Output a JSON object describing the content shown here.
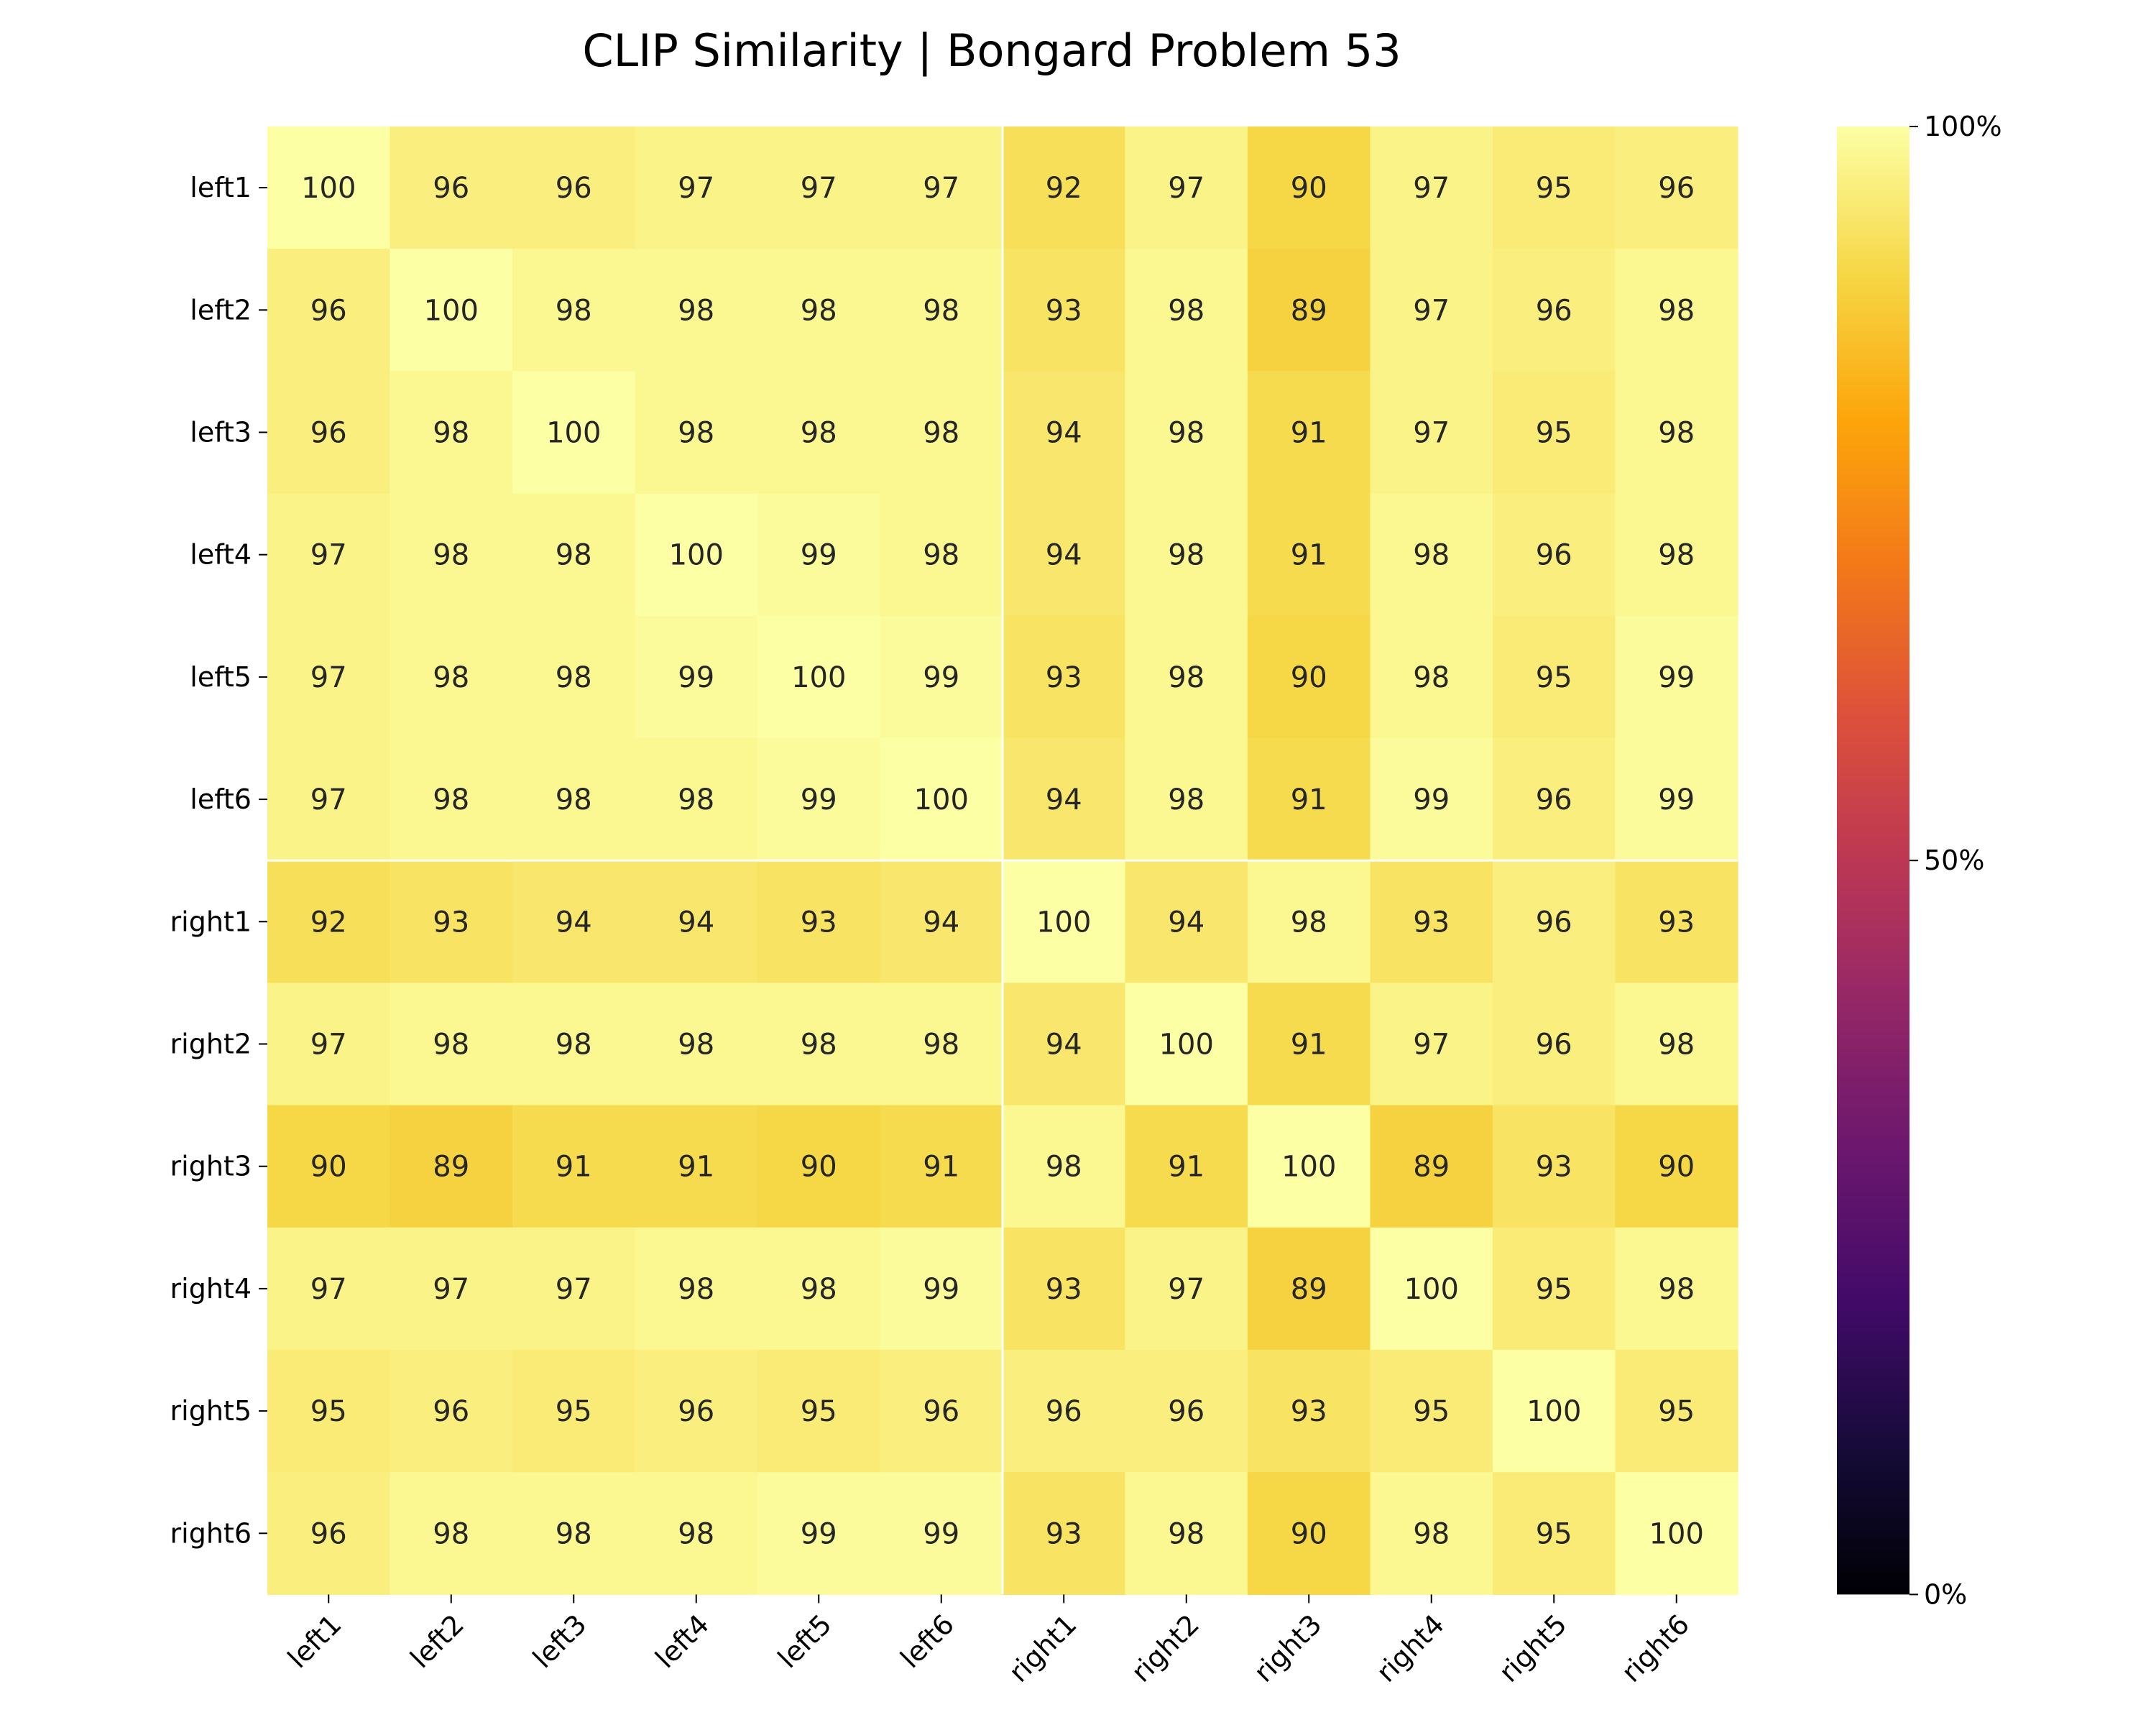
{
  "chart_data": {
    "type": "heatmap",
    "title": "CLIP Similarity | Bongard Problem 53",
    "xlabel": "",
    "ylabel": "",
    "x_categories": [
      "left1",
      "left2",
      "left3",
      "left4",
      "left5",
      "left6",
      "right1",
      "right2",
      "right3",
      "right4",
      "right5",
      "right6"
    ],
    "y_categories": [
      "left1",
      "left2",
      "left3",
      "left4",
      "left5",
      "left6",
      "right1",
      "right2",
      "right3",
      "right4",
      "right5",
      "right6"
    ],
    "values": [
      [
        100,
        96,
        96,
        97,
        97,
        97,
        92,
        97,
        90,
        97,
        95,
        96
      ],
      [
        96,
        100,
        98,
        98,
        98,
        98,
        93,
        98,
        89,
        97,
        96,
        98
      ],
      [
        96,
        98,
        100,
        98,
        98,
        98,
        94,
        98,
        91,
        97,
        95,
        98
      ],
      [
        97,
        98,
        98,
        100,
        99,
        98,
        94,
        98,
        91,
        98,
        96,
        98
      ],
      [
        97,
        98,
        98,
        99,
        100,
        99,
        93,
        98,
        90,
        98,
        95,
        99
      ],
      [
        97,
        98,
        98,
        98,
        99,
        100,
        94,
        98,
        91,
        99,
        96,
        99
      ],
      [
        92,
        93,
        94,
        94,
        93,
        94,
        100,
        94,
        98,
        93,
        96,
        93
      ],
      [
        97,
        98,
        98,
        98,
        98,
        98,
        94,
        100,
        91,
        97,
        96,
        98
      ],
      [
        90,
        89,
        91,
        91,
        90,
        91,
        98,
        91,
        100,
        89,
        93,
        90
      ],
      [
        97,
        97,
        97,
        98,
        98,
        99,
        93,
        97,
        89,
        100,
        95,
        98
      ],
      [
        95,
        96,
        95,
        96,
        95,
        96,
        96,
        96,
        93,
        95,
        100,
        95
      ],
      [
        96,
        98,
        98,
        98,
        99,
        99,
        93,
        98,
        90,
        98,
        95,
        100
      ]
    ],
    "value_range": [
      0,
      100
    ],
    "colormap": "inferno",
    "colorbar": {
      "ticks": [
        0,
        50,
        100
      ],
      "tick_labels": [
        "0%",
        "50%",
        "100%"
      ]
    },
    "group_divider_after_index": 6,
    "divider_color": "#ffffff"
  }
}
